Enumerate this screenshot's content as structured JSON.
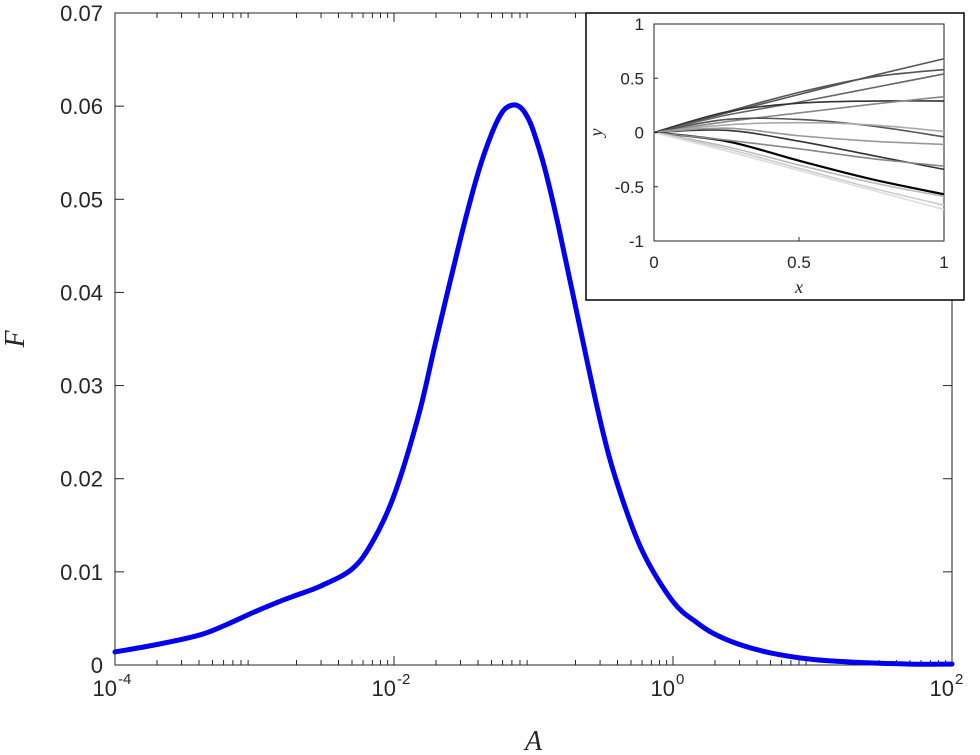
{
  "chart_data": [
    {
      "type": "line",
      "xlabel": "A",
      "ylabel": "F",
      "xscale": "log",
      "xlim": [
        0.0001,
        100
      ],
      "ylim": [
        0,
        0.07
      ],
      "x_ticks": [
        {
          "value": 0.0001,
          "base": "10",
          "exp": "-4"
        },
        {
          "value": 0.01,
          "base": "10",
          "exp": "-2"
        },
        {
          "value": 1,
          "base": "10",
          "exp": "0"
        },
        {
          "value": 100,
          "base": "10",
          "exp": "2"
        }
      ],
      "y_ticks": [
        {
          "value": 0,
          "label": "0"
        },
        {
          "value": 0.01,
          "label": "0.01"
        },
        {
          "value": 0.02,
          "label": "0.02"
        },
        {
          "value": 0.03,
          "label": "0.03"
        },
        {
          "value": 0.04,
          "label": "0.04"
        },
        {
          "value": 0.05,
          "label": "0.05"
        },
        {
          "value": 0.06,
          "label": "0.06"
        },
        {
          "value": 0.07,
          "label": "0.07"
        }
      ],
      "grid": false,
      "series": [
        {
          "color": "#0000ee",
          "x": [
            0.0001,
            0.0002,
            0.0004,
            0.0006,
            0.001,
            0.0015,
            0.002,
            0.003,
            0.005,
            0.007,
            0.01,
            0.015,
            0.02,
            0.03,
            0.04,
            0.05,
            0.06,
            0.07,
            0.08,
            0.09,
            0.1,
            0.12,
            0.15,
            0.2,
            0.3,
            0.4,
            0.6,
            1,
            1.5,
            2,
            3,
            5,
            10,
            20,
            50,
            100
          ],
          "y": [
            0.0014,
            0.0022,
            0.0032,
            0.0042,
            0.0057,
            0.0068,
            0.0075,
            0.0085,
            0.0103,
            0.0132,
            0.0182,
            0.0268,
            0.0348,
            0.0458,
            0.0528,
            0.057,
            0.0594,
            0.0601,
            0.0599,
            0.0589,
            0.0573,
            0.0534,
            0.0473,
            0.0385,
            0.0263,
            0.0194,
            0.0123,
            0.0068,
            0.0045,
            0.0033,
            0.0022,
            0.0013,
            0.0006,
            0.0003,
            0.0001,
            0.0001
          ]
        }
      ]
    },
    {
      "type": "line",
      "xlabel": "x",
      "ylabel": "y",
      "xlim": [
        0,
        1
      ],
      "ylim": [
        -1,
        1
      ],
      "x_ticks": [
        {
          "value": 0,
          "label": "0"
        },
        {
          "value": 0.5,
          "label": "0.5"
        },
        {
          "value": 1,
          "label": "1"
        }
      ],
      "y_ticks": [
        {
          "value": 1,
          "label": "1"
        },
        {
          "value": 0.5,
          "label": "0.5"
        },
        {
          "value": 0,
          "label": "0"
        },
        {
          "value": -0.5,
          "label": "-0.5"
        },
        {
          "value": -1,
          "label": "-1"
        }
      ],
      "grid": false,
      "position": "top-right inset",
      "series": [
        {
          "color": "#555555",
          "x": [
            0,
            0.25,
            0.5,
            0.75,
            1
          ],
          "y": [
            0,
            0.18,
            0.35,
            0.52,
            0.68
          ]
        },
        {
          "color": "#555555",
          "x": [
            0,
            0.25,
            0.5,
            0.75,
            1
          ],
          "y": [
            0,
            0.19,
            0.37,
            0.51,
            0.58
          ]
        },
        {
          "color": "#666666",
          "x": [
            0,
            0.25,
            0.5,
            0.75,
            1
          ],
          "y": [
            0,
            0.16,
            0.28,
            0.41,
            0.54
          ]
        },
        {
          "color": "#333333",
          "x": [
            0,
            0.25,
            0.5,
            0.75,
            1
          ],
          "y": [
            0,
            0.19,
            0.27,
            0.29,
            0.29
          ]
        },
        {
          "color": "#888888",
          "x": [
            0,
            0.25,
            0.5,
            0.75,
            1
          ],
          "y": [
            0,
            0.1,
            0.18,
            0.26,
            0.33
          ]
        },
        {
          "color": "#555555",
          "x": [
            0,
            0.25,
            0.5,
            0.75,
            1
          ],
          "y": [
            0,
            0.12,
            0.12,
            0.06,
            -0.04
          ]
        },
        {
          "color": "#aaaaaa",
          "x": [
            0,
            0.25,
            0.5,
            0.75,
            1
          ],
          "y": [
            0,
            0.07,
            0.09,
            0.07,
            0.01
          ]
        },
        {
          "color": "#333333",
          "x": [
            0,
            0.25,
            0.5,
            0.75,
            1
          ],
          "y": [
            0,
            0.02,
            -0.08,
            -0.21,
            -0.34
          ]
        },
        {
          "color": "#999999",
          "x": [
            0,
            0.25,
            0.5,
            0.75,
            1
          ],
          "y": [
            0,
            0.04,
            -0.03,
            -0.08,
            -0.11
          ]
        },
        {
          "color": "#000000",
          "x": [
            0,
            0.25,
            0.5,
            0.75,
            1
          ],
          "y": [
            0,
            -0.08,
            -0.26,
            -0.43,
            -0.57
          ]
        },
        {
          "color": "#888888",
          "x": [
            0,
            0.25,
            0.5,
            0.75,
            1
          ],
          "y": [
            0,
            -0.07,
            -0.15,
            -0.24,
            -0.31
          ]
        },
        {
          "color": "#bbbbbb",
          "x": [
            0,
            0.25,
            0.5,
            0.75,
            1
          ],
          "y": [
            0,
            -0.13,
            -0.3,
            -0.46,
            -0.59
          ]
        },
        {
          "color": "#cccccc",
          "x": [
            0,
            0.25,
            0.5,
            0.75,
            1
          ],
          "y": [
            0,
            -0.15,
            -0.33,
            -0.51,
            -0.67
          ]
        },
        {
          "color": "#dddddd",
          "x": [
            0,
            0.25,
            0.5,
            0.75,
            1
          ],
          "y": [
            0,
            -0.17,
            -0.35,
            -0.53,
            -0.71
          ]
        }
      ]
    }
  ]
}
